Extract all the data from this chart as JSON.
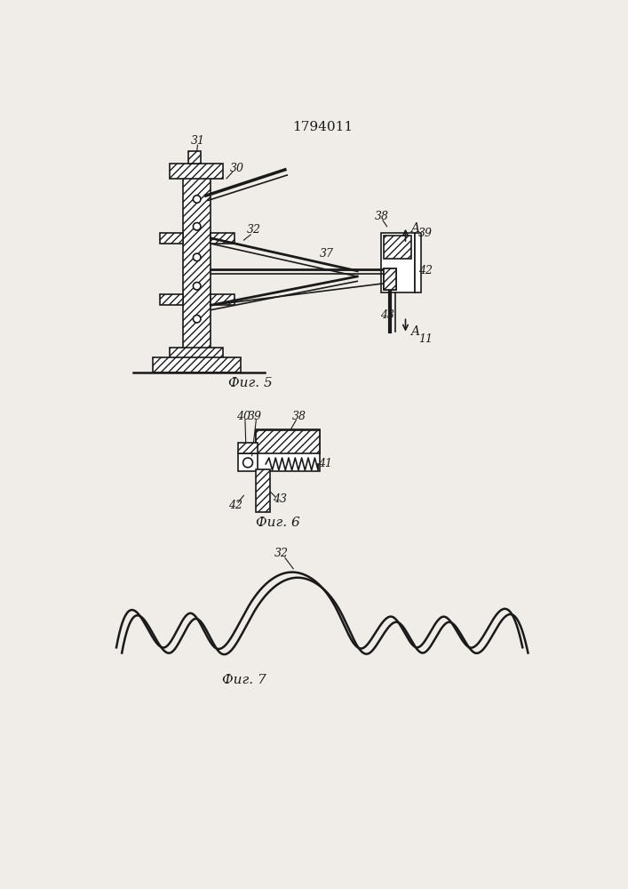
{
  "bg_color": "#f0ede8",
  "line_color": "#1a1a1a",
  "title_text": "1794011",
  "fig5_label": "Фиг. 5",
  "fig6_label": "Фиг. 6",
  "fig7_label": "Фиг. 7",
  "label_fontsize": 11,
  "title_fontsize": 11
}
